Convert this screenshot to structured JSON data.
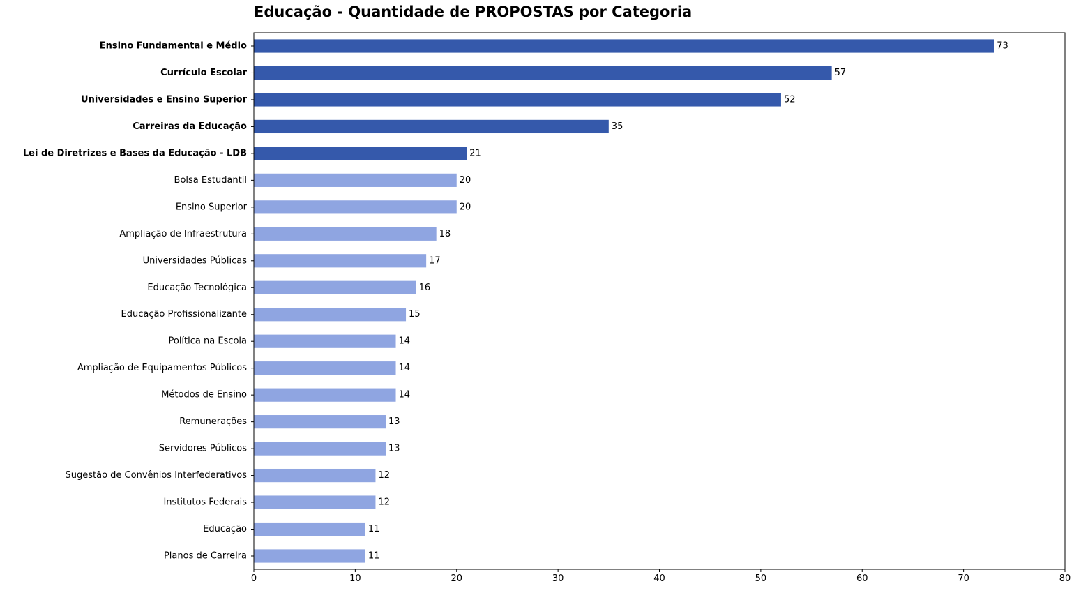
{
  "chart_data": {
    "type": "bar",
    "orientation": "horizontal",
    "title": "Educação - Quantidade de PROPOSTAS por Categoria",
    "xlabel": "",
    "ylabel": "",
    "xlim": [
      0,
      80
    ],
    "xticks": [
      0,
      10,
      20,
      30,
      40,
      50,
      60,
      70,
      80
    ],
    "grid": false,
    "categories": [
      "Ensino Fundamental e Médio",
      "Currículo Escolar",
      "Universidades e Ensino Superior",
      "Carreiras da Educação",
      "Lei de Diretrizes e Bases da Educação - LDB",
      "Bolsa Estudantil",
      "Ensino Superior",
      "Ampliação de Infraestrutura",
      "Universidades Públicas",
      "Educação Tecnológica",
      "Educação Profissionalizante",
      "Política na Escola",
      "Ampliação de Equipamentos Públicos",
      "Métodos de Ensino",
      "Remunerações",
      "Servidores Públicos",
      "Sugestão de Convênios Interfederativos",
      "Institutos Federais",
      "Educação",
      "Planos de Carreira"
    ],
    "values": [
      73,
      57,
      52,
      35,
      21,
      20,
      20,
      18,
      17,
      16,
      15,
      14,
      14,
      14,
      13,
      13,
      12,
      12,
      11,
      11
    ],
    "highlight_count": 5,
    "colors": {
      "highlight": "#3559ab",
      "normal": "#8fa5e1",
      "axis": "#000000",
      "text": "#000000"
    }
  }
}
